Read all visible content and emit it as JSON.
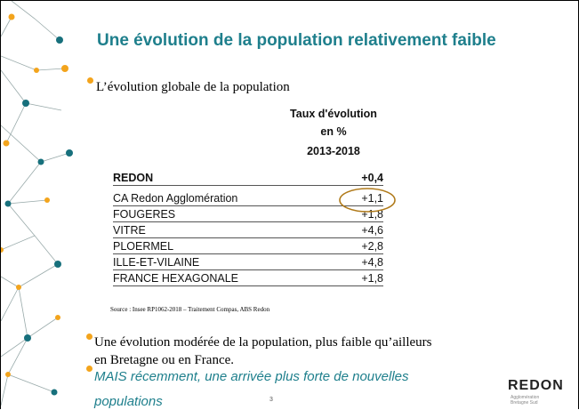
{
  "slide": {
    "title": "Une évolution de la population relativement faible",
    "bullets": [
      "L’évolution globale de la population"
    ],
    "table": {
      "header": [
        "Taux d'évolution",
        "en %",
        "2013-2018"
      ],
      "rows": [
        [
          "REDON",
          "+0,4"
        ],
        [
          "CA Redon Agglomération",
          "+1,1"
        ],
        [
          "FOUGERES",
          "+1,8"
        ],
        [
          "VITRE",
          "+4,6"
        ],
        [
          "PLOERMEL",
          "+2,8"
        ],
        [
          "ILLE-ET-VILAINE",
          "+4,8"
        ],
        [
          "FRANCE HEXAGONALE",
          "+1,8"
        ]
      ]
    },
    "source": "Source : Insee RP1062-2018 – Traitement Compas, ABS Redon",
    "conclusion": [
      "Une évolution modérée de la population, plus faible qu’ailleurs",
      "en Bretagne ou en France."
    ],
    "highlight": [
      "MAIS récemment, une arrivée plus forte de nouvelles",
      "populations"
    ],
    "page_number": "3",
    "logo": {
      "name": "REDON",
      "subtitle": [
        "Agglomération",
        "Bretagne Sud"
      ]
    }
  }
}
